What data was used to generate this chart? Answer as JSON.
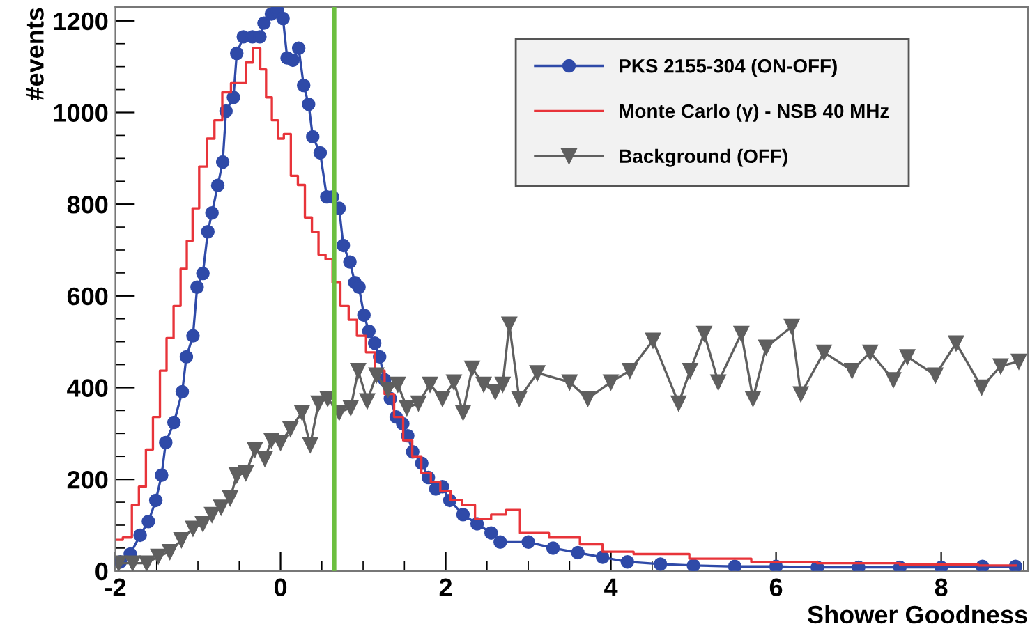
{
  "chart_data": {
    "type": "line",
    "xlabel": "Shower Goodness",
    "ylabel": "#events",
    "xlim": [
      -2,
      9.05
    ],
    "ylim": [
      0,
      1230
    ],
    "xticks": [
      -2,
      0,
      2,
      4,
      6,
      8
    ],
    "yticks": [
      0,
      200,
      400,
      600,
      800,
      1000,
      1200
    ],
    "grid": false,
    "legend": "top right",
    "ref_lines": [
      {
        "axis": "x",
        "value": 0.65,
        "color": "#6cbf3f"
      }
    ],
    "series": [
      {
        "name": "PKS 2155-304 (ON-OFF)",
        "marker": "circle",
        "color": "#2f4aa8",
        "x": [
          -1.94,
          -1.82,
          -1.7,
          -1.6,
          -1.51,
          -1.44,
          -1.39,
          -1.29,
          -1.19,
          -1.14,
          -1.06,
          -1.01,
          -0.94,
          -0.88,
          -0.83,
          -0.76,
          -0.7,
          -0.66,
          -0.57,
          -0.53,
          -0.45,
          -0.34,
          -0.25,
          -0.2,
          -0.11,
          -0.04,
          0.03,
          0.08,
          0.15,
          0.22,
          0.28,
          0.34,
          0.39,
          0.48,
          0.56,
          0.63,
          0.71,
          0.76,
          0.84,
          0.9,
          0.95,
          1.01,
          1.07,
          1.14,
          1.2,
          1.26,
          1.33,
          1.4,
          1.48,
          1.54,
          1.6,
          1.71,
          1.79,
          1.88,
          1.96,
          2.05,
          2.21,
          2.38,
          2.55,
          2.66,
          3.0,
          3.3,
          3.6,
          3.9,
          4.2,
          4.6,
          5.0,
          5.5,
          6.0,
          6.5,
          7.0,
          7.5,
          8.0,
          8.5,
          8.9
        ],
        "values": [
          20,
          37,
          78,
          108,
          154,
          209,
          280,
          324,
          391,
          467,
          513,
          619,
          649,
          740,
          781,
          841,
          892,
          1003,
          1033,
          1129,
          1165,
          1165,
          1165,
          1195,
          1215,
          1223,
          1205,
          1119,
          1114,
          1140,
          1059,
          1018,
          947,
          912,
          816,
          816,
          791,
          710,
          674,
          629,
          619,
          558,
          523,
          497,
          467,
          417,
          376,
          336,
          321,
          295,
          260,
          235,
          204,
          179,
          184,
          154,
          123,
          103,
          83,
          63,
          63,
          50,
          40,
          30,
          20,
          15,
          12,
          10,
          10,
          8,
          8,
          8,
          8,
          10,
          10
        ]
      },
      {
        "name": "Monte Carlo (γ) - NSB 40 MHz",
        "type": "step",
        "marker": "none",
        "color": "#e8343a",
        "x": [
          -1.98,
          -1.84,
          -1.76,
          -1.67,
          -1.59,
          -1.5,
          -1.42,
          -1.34,
          -1.25,
          -1.17,
          -1.1,
          -1.03,
          -0.94,
          -0.84,
          -0.76,
          -0.65,
          -0.55,
          -0.46,
          -0.38,
          -0.29,
          -0.2,
          -0.15,
          -0.06,
          0.0,
          0.08,
          0.17,
          0.25,
          0.34,
          0.42,
          0.5,
          0.59,
          0.67,
          0.78,
          0.87,
          0.98,
          1.09,
          1.2,
          1.32,
          1.43,
          1.54,
          1.65,
          1.76,
          1.88,
          1.99,
          2.13,
          2.27,
          2.44,
          2.66,
          2.8,
          3.0,
          3.5,
          3.75,
          4.05,
          4.5,
          5.4,
          6.0,
          7.0,
          8.0,
          8.9
        ],
        "values": [
          68,
          73,
          144,
          184,
          265,
          336,
          437,
          508,
          578,
          659,
          720,
          791,
          882,
          943,
          983,
          1044,
          1064,
          1064,
          1109,
          1140,
          1094,
          1033,
          983,
          943,
          953,
          862,
          842,
          771,
          740,
          690,
          680,
          629,
          578,
          548,
          513,
          477,
          437,
          386,
          336,
          285,
          250,
          214,
          194,
          174,
          154,
          144,
          113,
          123,
          133,
          83,
          73,
          58,
          42,
          37,
          27,
          20,
          17,
          14,
          12
        ]
      },
      {
        "name": "Background (OFF)",
        "marker": "triangle_down",
        "color": "#5f5f5f",
        "x": [
          -1.96,
          -1.79,
          -1.62,
          -1.48,
          -1.34,
          -1.2,
          -1.06,
          -0.94,
          -0.83,
          -0.72,
          -0.61,
          -0.53,
          -0.42,
          -0.31,
          -0.19,
          -0.11,
          0.0,
          0.12,
          0.26,
          0.36,
          0.46,
          0.57,
          0.71,
          0.85,
          0.94,
          1.05,
          1.16,
          1.3,
          1.42,
          1.53,
          1.67,
          1.81,
          1.96,
          2.1,
          2.21,
          2.32,
          2.46,
          2.6,
          2.69,
          2.77,
          2.89,
          3.11,
          3.5,
          3.72,
          4.0,
          4.23,
          4.51,
          4.82,
          4.96,
          5.13,
          5.3,
          5.58,
          5.72,
          5.88,
          6.19,
          6.3,
          6.58,
          6.92,
          7.14,
          7.42,
          7.59,
          7.93,
          8.18,
          8.49,
          8.72,
          8.94
        ],
        "values": [
          17,
          17,
          17,
          32,
          42,
          68,
          93,
          103,
          123,
          139,
          159,
          209,
          214,
          265,
          245,
          285,
          280,
          310,
          346,
          275,
          366,
          376,
          346,
          356,
          437,
          371,
          427,
          396,
          407,
          356,
          366,
          407,
          376,
          412,
          346,
          442,
          407,
          391,
          407,
          538,
          376,
          432,
          412,
          376,
          412,
          437,
          503,
          366,
          437,
          518,
          412,
          518,
          376,
          488,
          533,
          386,
          477,
          437,
          477,
          417,
          467,
          427,
          497,
          401,
          447,
          457
        ]
      }
    ]
  }
}
